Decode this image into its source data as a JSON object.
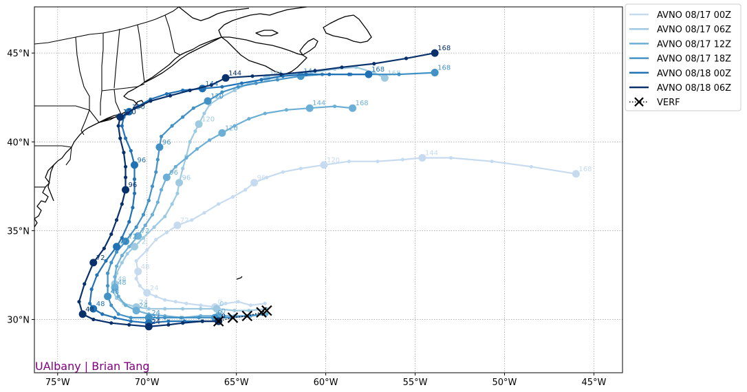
{
  "credit": "UAlbany | Brian Tang",
  "chart_data": {
    "type": "map-track",
    "projection": "plate-carree",
    "lon_range": [
      -76.3,
      -43.4
    ],
    "lat_range": [
      27.0,
      47.6
    ],
    "grid": true,
    "legend_placement": "outside-top-right",
    "x_ticks": [
      {
        "value": -75,
        "label": "75°W"
      },
      {
        "value": -70,
        "label": "70°W"
      },
      {
        "value": -65,
        "label": "65°W"
      },
      {
        "value": -60,
        "label": "60°W"
      },
      {
        "value": -55,
        "label": "55°W"
      },
      {
        "value": -50,
        "label": "50°W"
      },
      {
        "value": -45,
        "label": "45°W"
      }
    ],
    "y_ticks": [
      {
        "value": 30,
        "label": "30°N"
      },
      {
        "value": 35,
        "label": "35°N"
      },
      {
        "value": 40,
        "label": "40°N"
      },
      {
        "value": 45,
        "label": "45°N"
      }
    ],
    "series": [
      {
        "name": "AVNO 08/17 00Z",
        "color": "#c6dbef",
        "points": [
          [
            -63.4,
            30.9
          ],
          [
            -64.2,
            30.8
          ],
          [
            -64.9,
            31.0
          ],
          [
            -65.6,
            30.9
          ],
          [
            -66.2,
            30.7
          ],
          [
            -67.0,
            30.8
          ],
          [
            -67.8,
            30.9
          ],
          [
            -68.4,
            31.0
          ],
          [
            -69.0,
            31.1
          ],
          [
            -69.5,
            31.3
          ],
          [
            -70.0,
            31.5
          ],
          [
            -70.4,
            31.9
          ],
          [
            -70.6,
            32.3
          ],
          [
            -70.5,
            32.7
          ],
          [
            -70.6,
            33.3
          ],
          [
            -70.0,
            33.9
          ],
          [
            -69.5,
            34.5
          ],
          [
            -68.9,
            34.9
          ],
          [
            -68.3,
            35.3
          ],
          [
            -67.5,
            35.6
          ],
          [
            -66.8,
            36.0
          ],
          [
            -66.0,
            36.5
          ],
          [
            -65.2,
            36.9
          ],
          [
            -64.5,
            37.3
          ],
          [
            -64.0,
            37.7
          ],
          [
            -63.3,
            38.0
          ],
          [
            -62.4,
            38.3
          ],
          [
            -61.4,
            38.5
          ],
          [
            -60.1,
            38.7
          ],
          [
            -58.7,
            38.9
          ],
          [
            -57.1,
            38.9
          ],
          [
            -55.7,
            39.0
          ],
          [
            -54.6,
            39.1
          ],
          [
            -53.0,
            39.1
          ],
          [
            -50.7,
            38.9
          ],
          [
            -48.5,
            38.6
          ],
          [
            -46.0,
            38.2
          ]
        ],
        "labels": [
          {
            "i": 4,
            "hr": "0"
          },
          {
            "i": 10,
            "hr": "24"
          },
          {
            "i": 13,
            "hr": "48"
          },
          {
            "i": 18,
            "hr": "72"
          },
          {
            "i": 24,
            "hr": "96"
          },
          {
            "i": 28,
            "hr": "120"
          },
          {
            "i": 32,
            "hr": "144"
          },
          {
            "i": 36,
            "hr": "168"
          }
        ]
      },
      {
        "name": "AVNO 08/17 06Z",
        "color": "#9ecae1",
        "points": [
          [
            -63.3,
            30.6
          ],
          [
            -64.3,
            30.5
          ],
          [
            -65.1,
            30.5
          ],
          [
            -66.1,
            30.6
          ],
          [
            -67.0,
            30.6
          ],
          [
            -68.0,
            30.6
          ],
          [
            -69.0,
            30.6
          ],
          [
            -69.9,
            30.6
          ],
          [
            -70.6,
            30.7
          ],
          [
            -71.3,
            30.9
          ],
          [
            -71.7,
            31.2
          ],
          [
            -71.9,
            31.6
          ],
          [
            -71.8,
            32.0
          ],
          [
            -71.7,
            32.6
          ],
          [
            -71.4,
            33.2
          ],
          [
            -71.1,
            33.7
          ],
          [
            -70.7,
            34.1
          ],
          [
            -70.2,
            34.6
          ],
          [
            -69.6,
            35.2
          ],
          [
            -69.0,
            35.8
          ],
          [
            -68.6,
            36.5
          ],
          [
            -68.3,
            37.1
          ],
          [
            -68.2,
            37.7
          ],
          [
            -68.0,
            38.5
          ],
          [
            -67.8,
            39.2
          ],
          [
            -67.6,
            40.0
          ],
          [
            -67.3,
            40.6
          ],
          [
            -67.1,
            41.0
          ],
          [
            -66.8,
            41.6
          ],
          [
            -66.5,
            42.1
          ],
          [
            -65.9,
            42.5
          ],
          [
            -65.1,
            42.9
          ],
          [
            -64.3,
            43.3
          ],
          [
            -63.3,
            43.6
          ],
          [
            -62.0,
            43.8
          ],
          [
            -60.8,
            43.9
          ],
          [
            -59.5,
            44.1
          ],
          [
            -58.3,
            44.2
          ],
          [
            -57.3,
            43.9
          ],
          [
            -56.7,
            43.6
          ]
        ],
        "labels": [
          {
            "i": 3,
            "hr": "0"
          },
          {
            "i": 8,
            "hr": "24"
          },
          {
            "i": 12,
            "hr": "48"
          },
          {
            "i": 16,
            "hr": "72"
          },
          {
            "i": 22,
            "hr": "96"
          },
          {
            "i": 27,
            "hr": "120"
          },
          {
            "i": 33,
            "hr": "144"
          },
          {
            "i": 39,
            "hr": "168"
          }
        ]
      },
      {
        "name": "AVNO 08/17 12Z",
        "color": "#6baed6",
        "points": [
          [
            -63.3,
            30.3
          ],
          [
            -64.2,
            30.2
          ],
          [
            -65.1,
            30.2
          ],
          [
            -66.0,
            30.2
          ],
          [
            -67.0,
            30.2
          ],
          [
            -68.0,
            30.1
          ],
          [
            -69.0,
            30.2
          ],
          [
            -69.9,
            30.3
          ],
          [
            -70.6,
            30.5
          ],
          [
            -71.2,
            30.8
          ],
          [
            -71.6,
            31.3
          ],
          [
            -71.8,
            31.8
          ],
          [
            -71.8,
            32.4
          ],
          [
            -71.7,
            33.0
          ],
          [
            -71.4,
            33.6
          ],
          [
            -71.0,
            34.1
          ],
          [
            -70.5,
            34.7
          ],
          [
            -70.1,
            35.3
          ],
          [
            -69.7,
            35.9
          ],
          [
            -69.4,
            36.6
          ],
          [
            -69.2,
            37.3
          ],
          [
            -68.9,
            38.0
          ],
          [
            -68.4,
            38.6
          ],
          [
            -67.8,
            39.1
          ],
          [
            -67.2,
            39.6
          ],
          [
            -66.5,
            40.1
          ],
          [
            -65.8,
            40.5
          ],
          [
            -65.1,
            40.9
          ],
          [
            -64.3,
            41.3
          ],
          [
            -63.4,
            41.6
          ],
          [
            -62.2,
            41.8
          ],
          [
            -60.9,
            41.9
          ],
          [
            -59.5,
            42.0
          ],
          [
            -58.5,
            41.9
          ]
        ],
        "labels": [
          {
            "i": 3,
            "hr": "0"
          },
          {
            "i": 8,
            "hr": "24"
          },
          {
            "i": 11,
            "hr": "48"
          },
          {
            "i": 16,
            "hr": "72"
          },
          {
            "i": 21,
            "hr": "96"
          },
          {
            "i": 26,
            "hr": "120"
          },
          {
            "i": 31,
            "hr": "144"
          },
          {
            "i": 33,
            "hr": "168"
          }
        ]
      },
      {
        "name": "AVNO 08/17 18Z",
        "color": "#4292c6",
        "points": [
          [
            -63.5,
            30.3
          ],
          [
            -64.4,
            30.2
          ],
          [
            -65.3,
            30.1
          ],
          [
            -66.2,
            30.1
          ],
          [
            -67.1,
            30.1
          ],
          [
            -68.1,
            30.1
          ],
          [
            -69.0,
            30.1
          ],
          [
            -69.9,
            30.1
          ],
          [
            -70.9,
            30.1
          ],
          [
            -71.6,
            30.3
          ],
          [
            -72.0,
            30.8
          ],
          [
            -72.2,
            31.3
          ],
          [
            -72.2,
            31.9
          ],
          [
            -72.2,
            32.6
          ],
          [
            -72.0,
            33.2
          ],
          [
            -71.7,
            33.8
          ],
          [
            -71.2,
            34.4
          ],
          [
            -70.6,
            35.2
          ],
          [
            -70.2,
            35.9
          ],
          [
            -69.9,
            36.7
          ],
          [
            -69.7,
            37.5
          ],
          [
            -69.5,
            38.3
          ],
          [
            -69.4,
            39.0
          ],
          [
            -69.3,
            39.7
          ],
          [
            -69.2,
            40.3
          ],
          [
            -68.6,
            40.9
          ],
          [
            -68.0,
            41.4
          ],
          [
            -67.4,
            41.9
          ],
          [
            -66.6,
            42.3
          ],
          [
            -65.8,
            42.8
          ],
          [
            -64.9,
            43.1
          ],
          [
            -63.9,
            43.3
          ],
          [
            -62.7,
            43.5
          ],
          [
            -61.4,
            43.7
          ],
          [
            -60.2,
            43.8
          ],
          [
            -58.6,
            43.8
          ],
          [
            -57.6,
            43.8
          ],
          [
            -55.9,
            43.8
          ],
          [
            -53.9,
            43.9
          ]
        ],
        "labels": [
          {
            "i": 3,
            "hr": "0"
          },
          {
            "i": 7,
            "hr": "24"
          },
          {
            "i": 11,
            "hr": "48"
          },
          {
            "i": 16,
            "hr": "72"
          },
          {
            "i": 23,
            "hr": "96"
          },
          {
            "i": 28,
            "hr": "120"
          },
          {
            "i": 33,
            "hr": "144"
          },
          {
            "i": 38,
            "hr": "168"
          }
        ]
      },
      {
        "name": "AVNO 08/18 00Z",
        "color": "#2171b5",
        "points": [
          [
            -66.0,
            29.9
          ],
          [
            -66.9,
            29.9
          ],
          [
            -67.9,
            29.9
          ],
          [
            -68.8,
            29.9
          ],
          [
            -69.9,
            29.8
          ],
          [
            -70.9,
            29.9
          ],
          [
            -71.8,
            30.1
          ],
          [
            -72.5,
            30.3
          ],
          [
            -73.0,
            30.6
          ],
          [
            -73.2,
            30.9
          ],
          [
            -73.1,
            31.7
          ],
          [
            -72.8,
            32.5
          ],
          [
            -72.3,
            33.3
          ],
          [
            -71.7,
            34.1
          ],
          [
            -71.4,
            34.6
          ],
          [
            -71.0,
            35.5
          ],
          [
            -70.8,
            36.3
          ],
          [
            -70.7,
            37.1
          ],
          [
            -70.7,
            37.9
          ],
          [
            -70.7,
            38.7
          ],
          [
            -70.9,
            39.5
          ],
          [
            -71.2,
            40.2
          ],
          [
            -71.4,
            40.9
          ],
          [
            -71.3,
            41.4
          ],
          [
            -71.0,
            41.7
          ],
          [
            -70.5,
            42.0
          ],
          [
            -69.8,
            42.4
          ],
          [
            -68.9,
            42.7
          ],
          [
            -68.0,
            42.9
          ],
          [
            -66.9,
            43.0
          ],
          [
            -65.8,
            43.1
          ],
          [
            -64.7,
            43.3
          ],
          [
            -63.6,
            43.5
          ],
          [
            -62.4,
            43.7
          ],
          [
            -61.1,
            43.8
          ],
          [
            -59.8,
            43.8
          ],
          [
            -58.7,
            43.8
          ],
          [
            -57.6,
            43.8
          ]
        ],
        "labels": [
          {
            "i": 0,
            "hr": "0"
          },
          {
            "i": 4,
            "hr": "24"
          },
          {
            "i": 8,
            "hr": "48"
          },
          {
            "i": 13,
            "hr": "72"
          },
          {
            "i": 19,
            "hr": "96"
          },
          {
            "i": 24,
            "hr": "120"
          },
          {
            "i": 29,
            "hr": "144"
          },
          {
            "i": 37,
            "hr": "168"
          }
        ]
      },
      {
        "name": "AVNO 08/18 06Z",
        "color": "#08306b",
        "points": [
          [
            -66.0,
            29.9
          ],
          [
            -66.9,
            29.9
          ],
          [
            -68.0,
            29.8
          ],
          [
            -68.8,
            29.7
          ],
          [
            -69.9,
            29.6
          ],
          [
            -71.0,
            29.7
          ],
          [
            -72.0,
            29.8
          ],
          [
            -73.0,
            30.0
          ],
          [
            -73.6,
            30.3
          ],
          [
            -73.8,
            31.0
          ],
          [
            -73.5,
            32.0
          ],
          [
            -73.0,
            33.2
          ],
          [
            -72.4,
            34.0
          ],
          [
            -72.0,
            34.8
          ],
          [
            -71.7,
            35.6
          ],
          [
            -71.4,
            36.5
          ],
          [
            -71.2,
            37.3
          ],
          [
            -71.2,
            38.0
          ],
          [
            -71.2,
            38.6
          ],
          [
            -71.3,
            39.4
          ],
          [
            -71.5,
            40.2
          ],
          [
            -71.6,
            40.9
          ],
          [
            -71.5,
            41.4
          ],
          [
            -71.1,
            41.6
          ],
          [
            -70.7,
            41.9
          ],
          [
            -69.8,
            42.3
          ],
          [
            -68.7,
            42.6
          ],
          [
            -67.6,
            42.9
          ],
          [
            -66.4,
            43.2
          ],
          [
            -65.6,
            43.6
          ],
          [
            -64.1,
            43.7
          ],
          [
            -62.5,
            43.8
          ],
          [
            -60.6,
            44.0
          ],
          [
            -59.1,
            44.2
          ],
          [
            -57.3,
            44.4
          ],
          [
            -55.5,
            44.7
          ],
          [
            -53.9,
            45.0
          ]
        ],
        "labels": [
          {
            "i": 0,
            "hr": "0"
          },
          {
            "i": 4,
            "hr": "24"
          },
          {
            "i": 8,
            "hr": "48"
          },
          {
            "i": 11,
            "hr": "72"
          },
          {
            "i": 16,
            "hr": "96"
          },
          {
            "i": 22,
            "hr": "120"
          },
          {
            "i": 29,
            "hr": "144"
          },
          {
            "i": 36,
            "hr": "168"
          }
        ]
      }
    ],
    "verf": {
      "name": "VERF",
      "color": "#000000",
      "points": [
        [
          -63.3,
          30.5
        ],
        [
          -63.6,
          30.4
        ],
        [
          -64.4,
          30.2
        ],
        [
          -65.2,
          30.1
        ],
        [
          -66.0,
          29.9
        ]
      ]
    }
  }
}
